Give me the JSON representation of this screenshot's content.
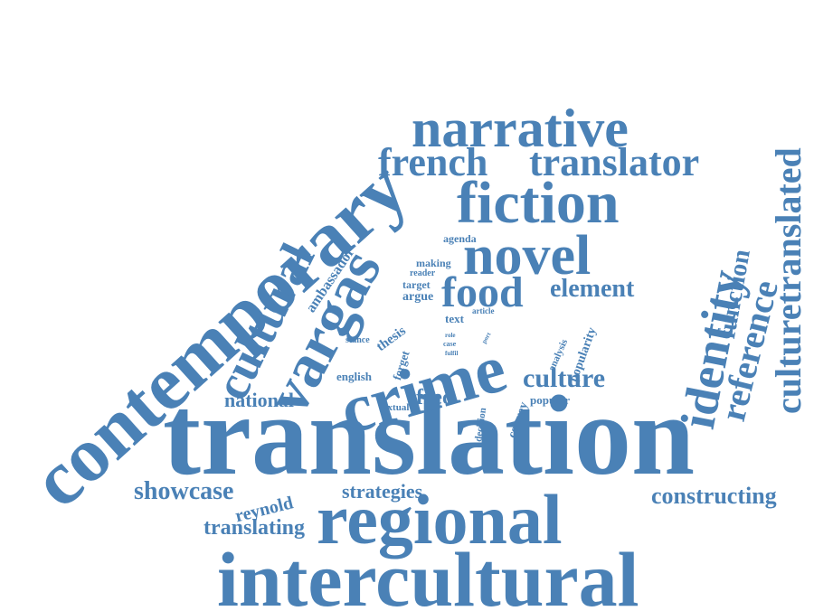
{
  "word_cloud": {
    "color": "#4a81b6",
    "words": [
      "translation",
      "contemporary",
      "intercultural",
      "regional",
      "crime",
      "narrative",
      "fiction",
      "vargas",
      "identity",
      "french",
      "translator",
      "novel",
      "food",
      "cultural",
      "culturetranslated",
      "function",
      "reference",
      "element",
      "culture",
      "constructing",
      "showcase",
      "strategies",
      "reynold",
      "translating",
      "national",
      "fred",
      "english",
      "thesis",
      "ambassador",
      "agenda",
      "making",
      "reader",
      "target",
      "argue",
      "text",
      "article",
      "stance",
      "role",
      "case",
      "fulfil",
      "port",
      "forget",
      "convey",
      "popular",
      "popularity",
      "analysis",
      "decision",
      "textual"
    ]
  }
}
